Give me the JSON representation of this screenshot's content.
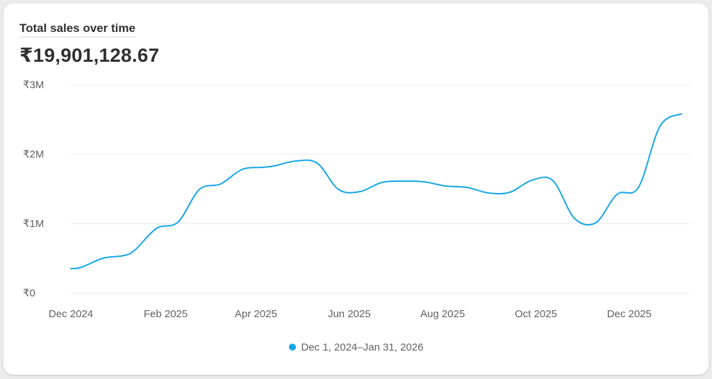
{
  "card": {
    "title": "Total sales over time",
    "total": "₹19,901,128.67"
  },
  "chart_data": {
    "type": "line",
    "title": "Total sales over time",
    "xlabel": "",
    "ylabel": "",
    "ylim": [
      0,
      3000000
    ],
    "yticks": [
      {
        "value": 0,
        "label": "₹0"
      },
      {
        "value": 1000000,
        "label": "₹1M"
      },
      {
        "value": 2000000,
        "label": "₹2M"
      },
      {
        "value": 3000000,
        "label": "₹3M"
      }
    ],
    "xticks": [
      "Dec 2024",
      "Feb 2025",
      "Apr 2025",
      "Jun 2025",
      "Aug 2025",
      "Oct 2025",
      "Dec 2025"
    ],
    "grid": true,
    "legend_position": "bottom",
    "series": [
      {
        "name": "Dec 1, 2024–Jan 31, 2026",
        "color": "#13a5e8",
        "points": [
          {
            "x": "2024-12-01",
            "y": 350000
          },
          {
            "x": "2024-12-08",
            "y": 370000
          },
          {
            "x": "2024-12-22",
            "y": 500000
          },
          {
            "x": "2025-01-05",
            "y": 540000
          },
          {
            "x": "2025-01-12",
            "y": 620000
          },
          {
            "x": "2025-01-26",
            "y": 930000
          },
          {
            "x": "2025-02-09",
            "y": 1020000
          },
          {
            "x": "2025-02-23",
            "y": 1490000
          },
          {
            "x": "2025-03-09",
            "y": 1570000
          },
          {
            "x": "2025-03-23",
            "y": 1780000
          },
          {
            "x": "2025-04-06",
            "y": 1810000
          },
          {
            "x": "2025-04-13",
            "y": 1830000
          },
          {
            "x": "2025-04-27",
            "y": 1900000
          },
          {
            "x": "2025-05-11",
            "y": 1870000
          },
          {
            "x": "2025-05-25",
            "y": 1490000
          },
          {
            "x": "2025-06-08",
            "y": 1460000
          },
          {
            "x": "2025-06-22",
            "y": 1590000
          },
          {
            "x": "2025-07-06",
            "y": 1610000
          },
          {
            "x": "2025-07-20",
            "y": 1600000
          },
          {
            "x": "2025-08-03",
            "y": 1540000
          },
          {
            "x": "2025-08-17",
            "y": 1520000
          },
          {
            "x": "2025-08-31",
            "y": 1440000
          },
          {
            "x": "2025-09-14",
            "y": 1450000
          },
          {
            "x": "2025-09-28",
            "y": 1620000
          },
          {
            "x": "2025-10-12",
            "y": 1620000
          },
          {
            "x": "2025-10-26",
            "y": 1080000
          },
          {
            "x": "2025-11-09",
            "y": 1010000
          },
          {
            "x": "2025-11-23",
            "y": 1420000
          },
          {
            "x": "2025-12-07",
            "y": 1520000
          },
          {
            "x": "2025-12-21",
            "y": 2400000
          },
          {
            "x": "2026-01-04",
            "y": 2580000
          }
        ]
      }
    ]
  }
}
